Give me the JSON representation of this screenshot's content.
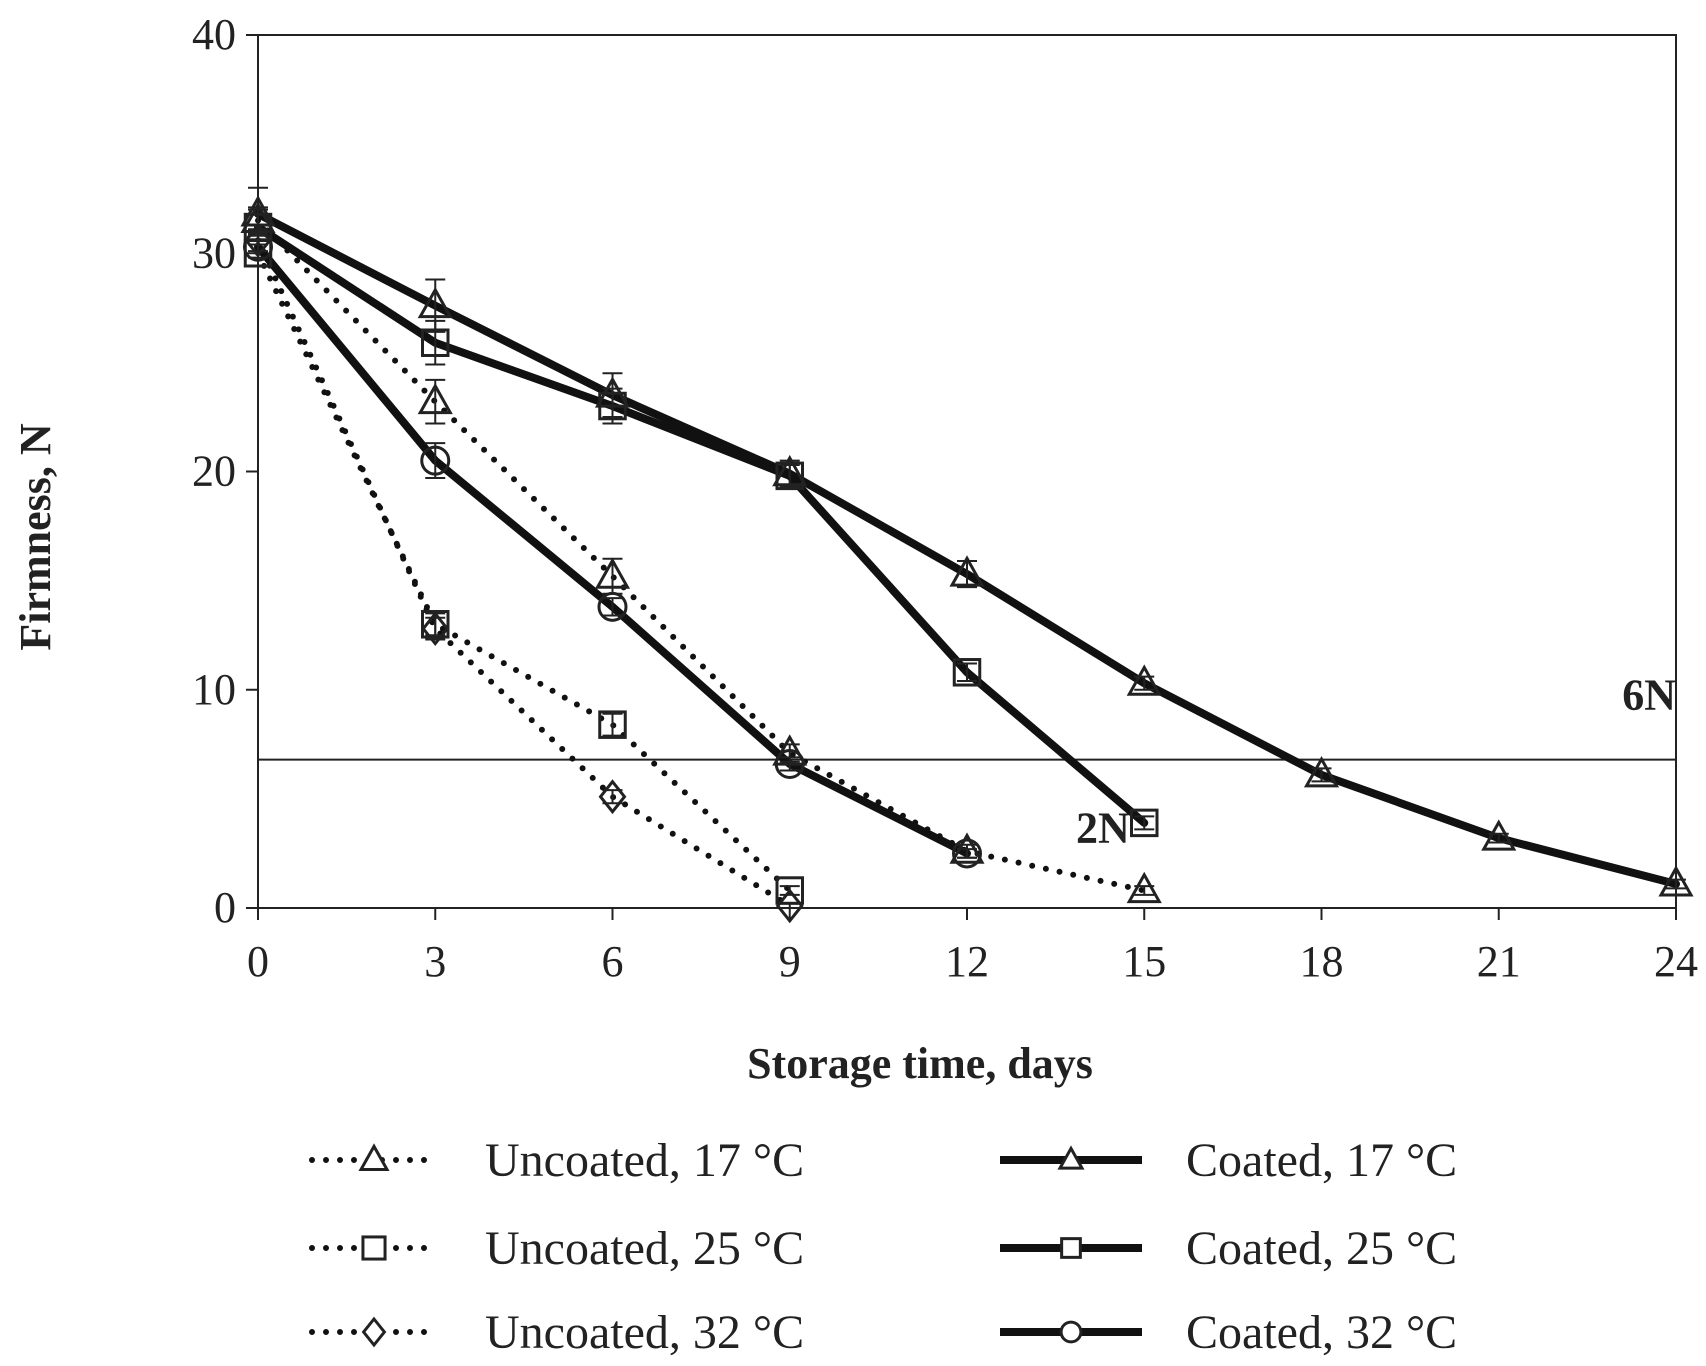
{
  "chart_data": {
    "type": "line",
    "title": "",
    "xlabel": "Storage time, days",
    "ylabel": "Firmness, N",
    "xlim": [
      0,
      24
    ],
    "ylim": [
      0,
      40
    ],
    "xticks": [
      0,
      3,
      6,
      9,
      12,
      15,
      18,
      21,
      24
    ],
    "yticks": [
      0,
      10,
      20,
      30,
      40
    ],
    "grid": false,
    "legend_position": "bottom",
    "threshold_line": {
      "y": 6.8
    },
    "annotations": [
      {
        "text": "6N",
        "x": 24,
        "y": 9.1
      },
      {
        "text": "2N",
        "x": 14.3,
        "y": 3.0
      }
    ],
    "series": [
      {
        "name": "Uncoated, 17 °C",
        "style": "dotted",
        "marker": "triangle",
        "x": [
          0,
          3,
          6,
          9,
          12,
          15
        ],
        "y": [
          31.5,
          23.2,
          15.2,
          7.1,
          2.6,
          0.8
        ],
        "err": [
          0.6,
          1.0,
          0.8,
          0.4,
          0.3,
          0.2
        ]
      },
      {
        "name": "Uncoated, 25 °C",
        "style": "dotted",
        "marker": "square",
        "x": [
          0,
          3,
          6,
          9
        ],
        "y": [
          30.0,
          13.0,
          8.4,
          0.8
        ],
        "err": [
          0.6,
          0.5,
          0.5,
          0.2
        ]
      },
      {
        "name": "Uncoated, 32 °C",
        "style": "dotted",
        "marker": "diamond",
        "x": [
          0,
          3,
          6,
          9
        ],
        "y": [
          30.6,
          12.8,
          5.1,
          0.1
        ],
        "err": [
          0.5,
          0.5,
          0.3,
          0.1
        ]
      },
      {
        "name": "Coated, 17 °C",
        "style": "solid",
        "marker": "triangle",
        "x": [
          0,
          3,
          6,
          9,
          12,
          15,
          18,
          21,
          24
        ],
        "y": [
          31.8,
          27.6,
          23.5,
          19.9,
          15.3,
          10.3,
          6.1,
          3.2,
          1.1
        ],
        "err": [
          1.2,
          1.2,
          1.0,
          0.6,
          0.6,
          0.3,
          0.3,
          0.2,
          0.2
        ]
      },
      {
        "name": "Coated, 25 °C",
        "style": "solid",
        "marker": "square",
        "x": [
          0,
          3,
          6,
          9,
          12,
          15
        ],
        "y": [
          31.2,
          25.9,
          23.0,
          19.8,
          10.8,
          3.9
        ],
        "err": [
          0.8,
          1.0,
          0.8,
          0.5,
          0.4,
          0.3
        ]
      },
      {
        "name": "Coated, 32 °C",
        "style": "solid",
        "marker": "circle",
        "x": [
          0,
          3,
          6,
          9,
          12
        ],
        "y": [
          30.3,
          20.5,
          13.8,
          6.6,
          2.5
        ],
        "err": [
          0.5,
          0.8,
          0.4,
          0.3,
          0.2
        ]
      }
    ]
  }
}
